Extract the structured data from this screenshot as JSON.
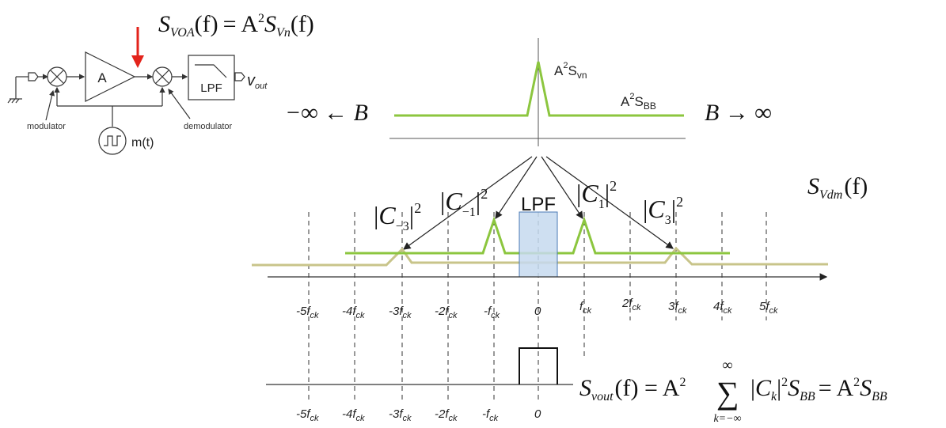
{
  "block_diagram": {
    "amplifier_label": "A",
    "lpf_label": "LPF",
    "output_label": "v",
    "output_sub": "out",
    "modulator_label": "modulator",
    "demodulator_label": "demodulator",
    "clock_label": "m(t)"
  },
  "equations": {
    "svoa": {
      "lhs": "S",
      "lhs_sub": "VOA",
      "arg": "(f)",
      "eq": "= A",
      "sup": "2",
      "rhs": "S",
      "rhs_sub": "Vn",
      "rhs_arg": "(f)"
    },
    "svdm": {
      "s": "S",
      "sub": "Vdm",
      "arg": "(f)"
    },
    "svout": {
      "s": "S",
      "sub": "vout",
      "arg": "(f) = A",
      "sup": "2",
      "sum_top": "∞",
      "sum_bottom": "k=−∞",
      "ck": "C",
      "ck_sub": "k",
      "ck_sup": "2",
      "sbb": "S",
      "sbb_sub": "BB",
      "eq2": "= A",
      "sup2": "2",
      "sbb2": "S",
      "sbb2_sub": "BB"
    }
  },
  "top_spectrum": {
    "left_label": "−∞ ← B",
    "right_label": "B → ∞",
    "peak_label": {
      "a": "A",
      "sup": "2",
      "s": "S",
      "sub": "vn"
    },
    "floor_label": {
      "a": "A",
      "sup": "2",
      "s": "S",
      "sub": "BB"
    }
  },
  "coefficients": [
    {
      "c": "C",
      "sub": "−3",
      "sup": "2"
    },
    {
      "c": "C",
      "sub": "−1",
      "sup": "2"
    },
    {
      "c": "C",
      "sub": "1",
      "sup": "2"
    },
    {
      "c": "C",
      "sub": "3",
      "sup": "2"
    }
  ],
  "lpf_box_label": "LPF",
  "axis_ticks": [
    {
      "main": "-5f",
      "sub": "ck"
    },
    {
      "main": "-4f",
      "sub": "ck"
    },
    {
      "main": "-3f",
      "sub": "ck"
    },
    {
      "main": "-2f",
      "sub": "ck"
    },
    {
      "main": "-f",
      "sub": "ck"
    },
    {
      "main": "0",
      "sub": ""
    },
    {
      "main": "f",
      "sub": "ck"
    },
    {
      "main": "2f",
      "sub": "ck"
    },
    {
      "main": "3f",
      "sub": "ck"
    },
    {
      "main": "4f",
      "sub": "ck"
    },
    {
      "main": "5f",
      "sub": "ck"
    }
  ],
  "bottom_ticks": [
    {
      "main": "-5f",
      "sub": "ck"
    },
    {
      "main": "-4f",
      "sub": "ck"
    },
    {
      "main": "-3f",
      "sub": "ck"
    },
    {
      "main": "-2f",
      "sub": "ck"
    },
    {
      "main": "-f",
      "sub": "ck"
    },
    {
      "main": "0",
      "sub": ""
    }
  ],
  "colors": {
    "green": "#8cc63f",
    "olive": "#c8c48a",
    "lpf_fill": "#c6d9ee",
    "lpf_stroke": "#4a7ab5",
    "red": "#e3231b"
  }
}
